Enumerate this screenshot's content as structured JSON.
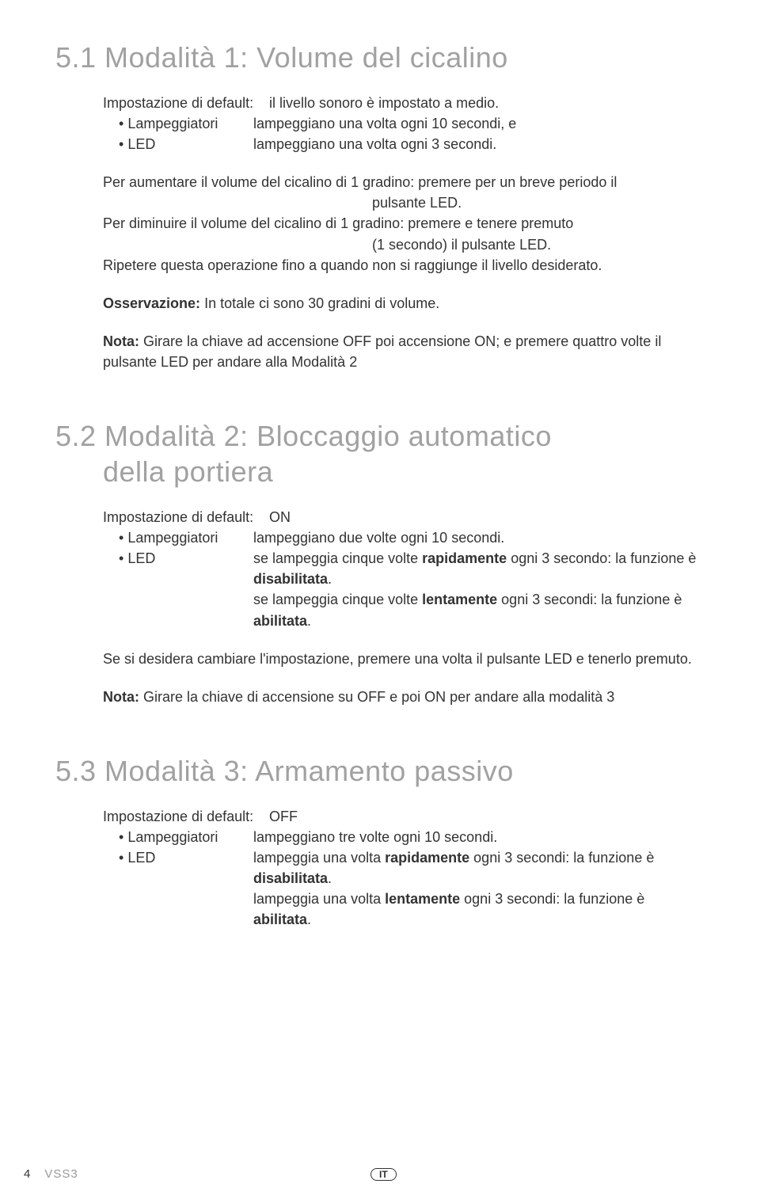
{
  "colors": {
    "heading": "#a1a1a1",
    "text": "#333333",
    "footer_code": "#9a9a9a",
    "background": "#ffffff"
  },
  "typography": {
    "heading_fontsize": 36,
    "heading_weight": 300,
    "body_fontsize": 18,
    "font_family": "Arial, Helvetica, sans-serif"
  },
  "s1": {
    "heading": "5.1 Modalità 1: Volume del cicalino",
    "def_label": "Impostazione di default:",
    "def_value": "il livello sonoro è impostato a medio.",
    "b1_label": "Lampeggiatori",
    "b1_value": "lampeggiano una volta ogni 10 secondi, e",
    "b2_label": "LED",
    "b2_value": "lampeggiano una volta ogni 3 secondi.",
    "p1a": "Per aumentare il volume del cicalino di 1 gradino: premere per un breve periodo il",
    "p1b": "pulsante LED.",
    "p2a": "Per diminuire il volume del cicalino di 1 gradino: premere e tenere premuto",
    "p2b": "(1 secondo) il pulsante LED.",
    "p3": "Ripetere questa operazione fino a quando non si raggiunge il livello desiderato.",
    "obs_label": "Osservazione:",
    "obs_text": " In totale ci sono 30 gradini di volume.",
    "nota_label": "Nota:",
    "nota_text": " Girare la chiave ad accensione OFF poi accensione ON; e premere quattro volte il pulsante LED per andare alla Modalità 2"
  },
  "s2": {
    "heading_l1": "5.2 Modalità 2: Bloccaggio automatico",
    "heading_l2": "della portiera",
    "def_label": "Impostazione di default:",
    "def_value": "ON",
    "b1_label": "Lampeggiatori",
    "b1_value": "lampeggiano due volte ogni 10 secondi.",
    "b2_label": "LED",
    "b2_v1a": "se lampeggia cinque volte ",
    "b2_v1b": "rapidamente",
    "b2_v1c": " ogni 3 secondo: la funzione è ",
    "b2_v1d": "disabilitata",
    "b2_v1e": ".",
    "b2_v2a": "se lampeggia cinque volte ",
    "b2_v2b": "lentamente",
    "b2_v2c": " ogni 3 secondi: la funzione è ",
    "b2_v2d": "abilitata",
    "b2_v2e": ".",
    "p1": "Se si desidera cambiare l'impostazione, premere una volta il pulsante LED e tenerlo premuto.",
    "nota_label": "Nota:",
    "nota_text": " Girare la chiave di accensione su OFF e poi ON per andare alla modalità 3"
  },
  "s3": {
    "heading": "5.3 Modalità 3: Armamento passivo",
    "def_label": "Impostazione di default:",
    "def_value": "OFF",
    "b1_label": "Lampeggiatori",
    "b1_value": "lampeggiano tre volte ogni 10 secondi.",
    "b2_label": "LED",
    "b2_v1a": "lampeggia una volta ",
    "b2_v1b": "rapidamente",
    "b2_v1c": " ogni 3 secondi: la funzione è ",
    "b2_v1d": "disabilitata",
    "b2_v1e": ".",
    "b2_v2a": "lampeggia una volta ",
    "b2_v2b": "lentamente",
    "b2_v2c": " ogni 3 secondi: la funzione è ",
    "b2_v2d": "abilitata",
    "b2_v2e": "."
  },
  "footer": {
    "page": "4",
    "code": "VSS3",
    "lang": "IT"
  }
}
